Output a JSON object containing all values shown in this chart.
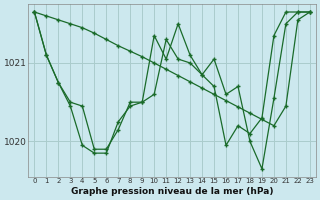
{
  "xlabel": "Graphe pression niveau de la mer (hPa)",
  "background_color": "#cce8ee",
  "plot_bg_color": "#cce8ee",
  "grid_color": "#aacccc",
  "line_color": "#1a6b2a",
  "x_ticks": [
    0,
    1,
    2,
    3,
    4,
    5,
    6,
    7,
    8,
    9,
    10,
    11,
    12,
    13,
    14,
    15,
    16,
    17,
    18,
    19,
    20,
    21,
    22,
    23
  ],
  "ylim": [
    1019.55,
    1021.75
  ],
  "yticks": [
    1020,
    1021
  ],
  "series": [
    [
      1021.65,
      1021.6,
      1021.55,
      1021.5,
      1021.45,
      1021.38,
      1021.3,
      1021.22,
      1021.15,
      1021.08,
      1021.0,
      1020.92,
      1020.84,
      1020.76,
      1020.68,
      1020.6,
      1020.52,
      1020.44,
      1020.36,
      1020.28,
      1020.2,
      1020.45,
      1021.55,
      1021.65
    ],
    [
      1021.65,
      1021.1,
      1020.75,
      1020.45,
      1019.95,
      1019.85,
      1019.85,
      1020.25,
      1020.45,
      1020.5,
      1021.35,
      1021.05,
      1021.5,
      1021.1,
      1020.85,
      1021.05,
      1020.6,
      1020.7,
      1020.0,
      1019.65,
      1020.55,
      1021.5,
      1021.65,
      1021.65
    ],
    [
      1021.65,
      1021.1,
      1020.75,
      1020.5,
      1020.45,
      1019.9,
      1019.9,
      1020.15,
      1020.5,
      1020.5,
      1020.6,
      1021.3,
      1021.05,
      1021.0,
      1020.85,
      1020.7,
      1019.95,
      1020.2,
      1020.1,
      1020.3,
      1021.35,
      1021.65,
      1021.65,
      1021.65
    ]
  ]
}
